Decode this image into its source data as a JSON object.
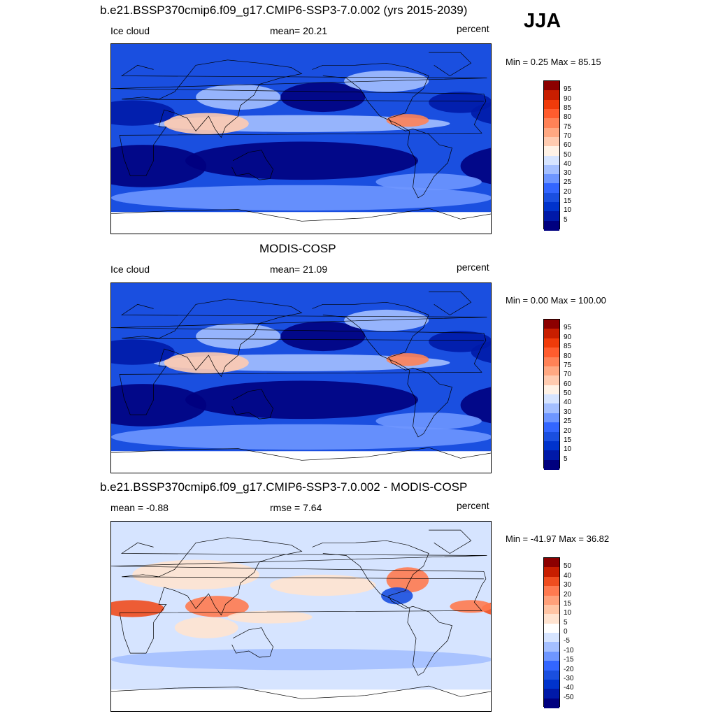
{
  "season": "JJA",
  "colors": {
    "abs_scale": [
      "#00007f",
      "#0019a8",
      "#0033cc",
      "#1a4fe0",
      "#3366ff",
      "#6e96ff",
      "#a4bfff",
      "#d6e4ff",
      "#fff2e6",
      "#ffcbb0",
      "#ffa882",
      "#ff8257",
      "#ff5c2e",
      "#f03b0a",
      "#c81e00",
      "#8c0000"
    ],
    "diff_scale": [
      "#00007f",
      "#0019a8",
      "#0033cc",
      "#1a4fe0",
      "#3366ff",
      "#6e96ff",
      "#a4bfff",
      "#d6e4ff",
      "#ffffff",
      "#ffe3d0",
      "#ffc4a4",
      "#ffa07a",
      "#ff7a50",
      "#f04d1f",
      "#c81e00",
      "#8c0000"
    ]
  },
  "panels": [
    {
      "title": "b.e21.BSSP370cmip6.f09_g17.CMIP6-SSP3-7.0.002 (yrs 2015-2039)",
      "left_label": "Ice cloud",
      "center_label": "mean=  20.21",
      "right_label": "percent",
      "minmax": "Min =   0.25 Max =  85.15",
      "colorbar_ticks": [
        "95",
        "90",
        "85",
        "80",
        "75",
        "70",
        "60",
        "50",
        "40",
        "30",
        "25",
        "20",
        "15",
        "10",
        "5"
      ],
      "map_icon": "global-map-ice-cloud-model"
    },
    {
      "title": "MODIS-COSP",
      "left_label": "Ice cloud",
      "center_label": "mean=  21.09",
      "right_label": "percent",
      "minmax": "Min =   0.00 Max = 100.00",
      "colorbar_ticks": [
        "95",
        "90",
        "85",
        "80",
        "75",
        "70",
        "60",
        "50",
        "40",
        "30",
        "25",
        "20",
        "15",
        "10",
        "5"
      ],
      "map_icon": "global-map-ice-cloud-obs"
    },
    {
      "title": "b.e21.BSSP370cmip6.f09_g17.CMIP6-SSP3-7.0.002 - MODIS-COSP",
      "left_label": "mean =  -0.88",
      "center_label": "rmse =   7.64",
      "right_label": "percent",
      "minmax": "Min = -41.97 Max =  36.82",
      "colorbar_ticks": [
        "50",
        "40",
        "30",
        "20",
        "15",
        "10",
        "5",
        "0",
        "-5",
        "-10",
        "-15",
        "-20",
        "-30",
        "-40",
        "-50"
      ],
      "map_icon": "global-map-difference"
    }
  ],
  "chart_data": [
    {
      "type": "heatmap",
      "title": "b.e21.BSSP370cmip6.f09_g17.CMIP6-SSP3-7.0.002 (yrs 2015-2039)",
      "variable": "Ice cloud",
      "units": "percent",
      "mean": 20.21,
      "min": 0.25,
      "max": 85.15,
      "levels": [
        5,
        10,
        15,
        20,
        25,
        30,
        40,
        50,
        60,
        70,
        75,
        80,
        85,
        90,
        95
      ]
    },
    {
      "type": "heatmap",
      "title": "MODIS-COSP",
      "variable": "Ice cloud",
      "units": "percent",
      "mean": 21.09,
      "min": 0.0,
      "max": 100.0,
      "levels": [
        5,
        10,
        15,
        20,
        25,
        30,
        40,
        50,
        60,
        70,
        75,
        80,
        85,
        90,
        95
      ]
    },
    {
      "type": "heatmap",
      "title": "b.e21.BSSP370cmip6.f09_g17.CMIP6-SSP3-7.0.002 - MODIS-COSP",
      "units": "percent",
      "mean": -0.88,
      "rmse": 7.64,
      "min": -41.97,
      "max": 36.82,
      "levels": [
        -50,
        -40,
        -30,
        -20,
        -15,
        -10,
        -5,
        0,
        5,
        10,
        15,
        20,
        30,
        40,
        50
      ]
    }
  ]
}
